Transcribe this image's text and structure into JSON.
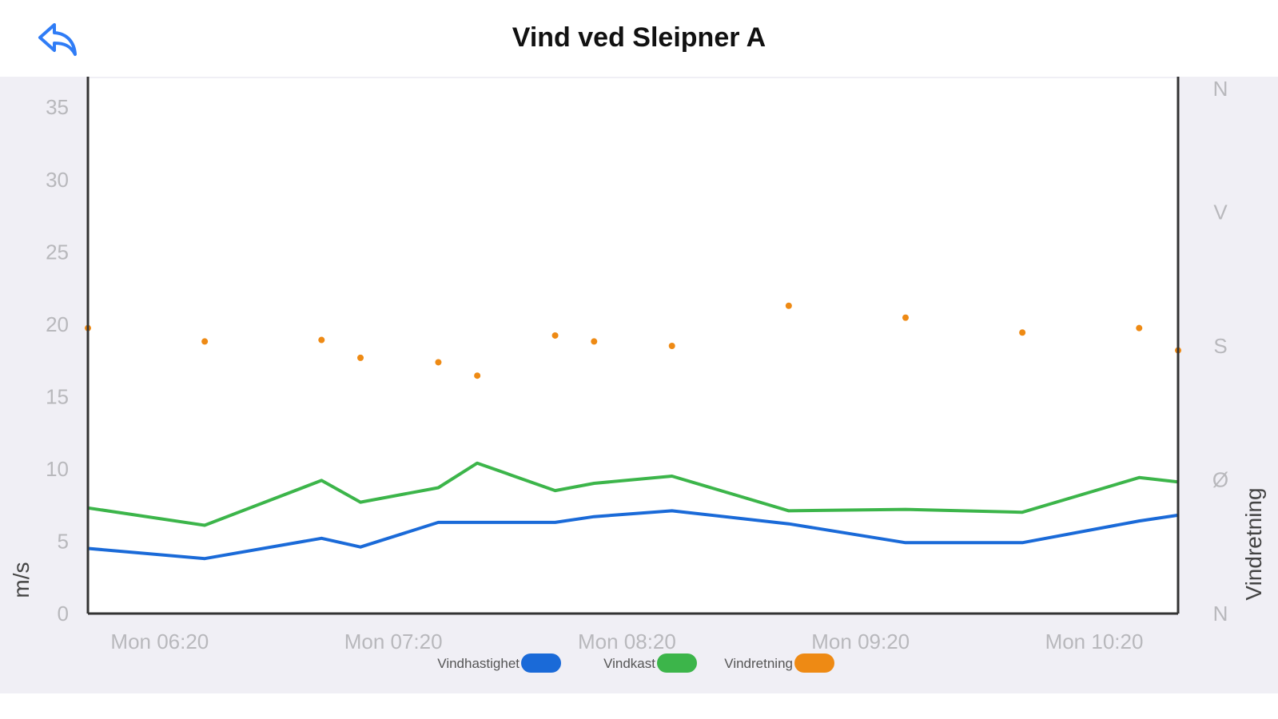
{
  "header": {
    "title": "Vind ved Sleipner A",
    "back_icon": "reply-arrow-icon"
  },
  "colors": {
    "accent": "#2f7cf6",
    "series_speed": "#1a6ad8",
    "series_gust": "#3cb54a",
    "series_direction": "#ee8a14",
    "plot_bg": "#ffffff",
    "page_bg": "#f0eff5"
  },
  "chart_data": {
    "type": "line",
    "title": "",
    "ylabel": "m/s",
    "y2label": "Vindretning",
    "ylim": [
      0,
      37
    ],
    "yticks": [
      "0",
      "5",
      "10",
      "15",
      "20",
      "25",
      "30",
      "35"
    ],
    "y2ticks": [
      "N",
      "Ø",
      "S",
      "V",
      "N"
    ],
    "xlim": [
      "05:40",
      "10:20"
    ],
    "xticks": [
      "Mon 06:20",
      "Mon 07:20",
      "Mon 08:20",
      "Mon 09:20",
      "Mon 10:20"
    ],
    "legend_position": "bottom-center",
    "grid": false,
    "series": [
      {
        "name": "Vindhastighet",
        "kind": "line",
        "x": [
          "05:40",
          "06:10",
          "06:40",
          "06:50",
          "07:10",
          "07:20",
          "07:40",
          "07:50",
          "08:10",
          "08:40",
          "09:10",
          "09:40",
          "10:10",
          "10:20"
        ],
        "values": [
          4.5,
          3.8,
          5.2,
          4.6,
          6.3,
          6.3,
          6.3,
          6.7,
          7.1,
          6.2,
          4.9,
          4.9,
          6.4,
          6.8
        ]
      },
      {
        "name": "Vindkast",
        "kind": "line",
        "x": [
          "05:40",
          "06:10",
          "06:40",
          "06:50",
          "07:10",
          "07:20",
          "07:40",
          "07:50",
          "08:10",
          "08:40",
          "09:10",
          "09:40",
          "10:10",
          "10:20"
        ],
        "values": [
          7.3,
          6.1,
          9.2,
          7.7,
          8.7,
          10.4,
          8.5,
          9.0,
          9.5,
          7.1,
          7.2,
          7.0,
          9.4,
          9.1
        ]
      },
      {
        "name": "Vindretning",
        "kind": "scatter",
        "x": [
          "05:40",
          "06:10",
          "06:40",
          "06:50",
          "07:10",
          "07:20",
          "07:40",
          "07:50",
          "08:10",
          "08:40",
          "09:10",
          "09:40",
          "10:10",
          "10:20"
        ],
        "values": [
          192,
          183,
          184,
          172,
          169,
          160,
          187,
          183,
          180,
          207,
          199,
          189,
          192,
          177
        ]
      }
    ]
  }
}
